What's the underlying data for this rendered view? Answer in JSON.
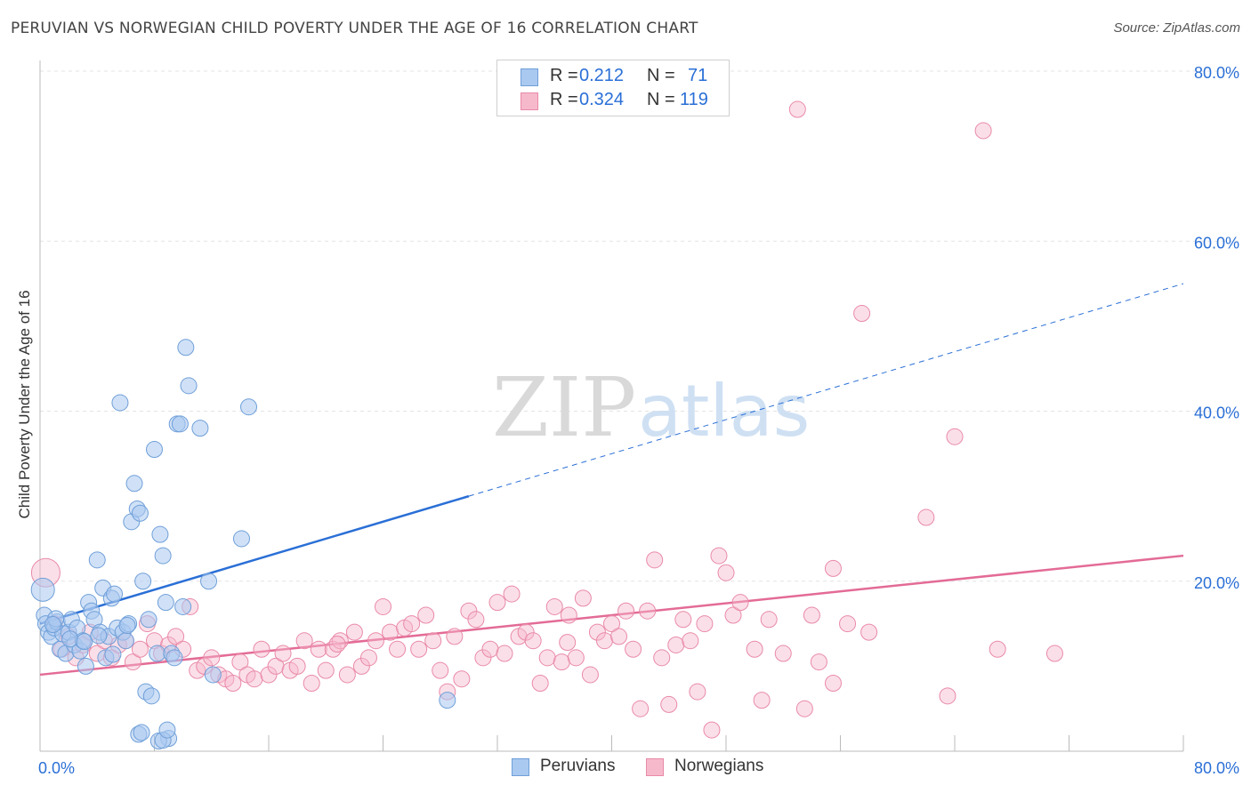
{
  "title": "PERUVIAN VS NORWEGIAN CHILD POVERTY UNDER THE AGE OF 16 CORRELATION CHART",
  "source": "Source: ZipAtlas.com",
  "watermark": {
    "zip": "ZIP",
    "atlas": "atlas"
  },
  "colors": {
    "peruvians_fill": "#aac9f0",
    "peruvians_stroke": "#6f9fd8",
    "peruvians_line": "#2a6fd6",
    "norwegians_fill": "#f6b9cc",
    "norwegians_stroke": "#e98aa8",
    "norwegians_line": "#e36b96",
    "accent_text": "#2a6fd6"
  },
  "legend_top": [
    {
      "r_label": "R =",
      "r_value": "0.212",
      "n_label": "N =",
      "n_value": "71"
    },
    {
      "r_label": "R =",
      "r_value": "0.324",
      "n_label": "N =",
      "n_value": "119"
    }
  ],
  "legend_bottom": {
    "peruvians": "Peruvians",
    "norwegians": "Norwegians"
  },
  "chart_data": {
    "type": "scatter",
    "xlabel": "",
    "ylabel": "Child Poverty Under the Age of 16",
    "xlim": [
      0,
      80
    ],
    "ylim": [
      0,
      80
    ],
    "x_tick_labels": [
      "0.0%",
      "80.0%"
    ],
    "y_tick_labels": [
      "20.0%",
      "40.0%",
      "60.0%",
      "80.0%"
    ],
    "y_ticks": [
      20,
      40,
      60,
      80
    ],
    "grid": true,
    "series": [
      {
        "name": "Peruvians",
        "R": 0.212,
        "N": 71,
        "trend": {
          "x0": 0,
          "y0": 15.0,
          "x1": 30,
          "y1": 30.0,
          "dashed_to_x": 80,
          "dashed_to_y": 55.0
        },
        "points": [
          [
            0.2,
            19.0
          ],
          [
            0.3,
            16.0
          ],
          [
            0.4,
            15.0
          ],
          [
            0.6,
            14.0
          ],
          [
            0.8,
            13.5
          ],
          [
            1.0,
            14.5
          ],
          [
            1.2,
            15.2
          ],
          [
            1.4,
            12.0
          ],
          [
            1.6,
            13.8
          ],
          [
            1.8,
            11.5
          ],
          [
            2.0,
            14.0
          ],
          [
            2.2,
            15.5
          ],
          [
            2.4,
            12.5
          ],
          [
            2.6,
            14.5
          ],
          [
            2.8,
            11.8
          ],
          [
            3.0,
            13.0
          ],
          [
            3.2,
            10.0
          ],
          [
            3.4,
            17.5
          ],
          [
            3.6,
            16.5
          ],
          [
            3.8,
            15.5
          ],
          [
            4.0,
            22.5
          ],
          [
            4.2,
            14.0
          ],
          [
            4.4,
            19.2
          ],
          [
            4.6,
            11.0
          ],
          [
            4.8,
            13.5
          ],
          [
            5.0,
            18.0
          ],
          [
            5.2,
            18.5
          ],
          [
            5.4,
            14.5
          ],
          [
            5.6,
            41.0
          ],
          [
            5.8,
            14.0
          ],
          [
            6.0,
            13.0
          ],
          [
            6.2,
            15.0
          ],
          [
            6.4,
            27.0
          ],
          [
            6.6,
            31.5
          ],
          [
            6.8,
            28.5
          ],
          [
            7.0,
            28.0
          ],
          [
            7.2,
            20.0
          ],
          [
            7.4,
            7.0
          ],
          [
            7.6,
            15.5
          ],
          [
            7.8,
            6.5
          ],
          [
            8.0,
            35.5
          ],
          [
            8.2,
            11.5
          ],
          [
            8.4,
            25.5
          ],
          [
            8.6,
            23.0
          ],
          [
            8.8,
            17.5
          ],
          [
            9.0,
            1.5
          ],
          [
            9.2,
            11.5
          ],
          [
            9.4,
            11.0
          ],
          [
            9.6,
            38.5
          ],
          [
            9.8,
            38.5
          ],
          [
            10.0,
            17.0
          ],
          [
            10.2,
            47.5
          ],
          [
            10.4,
            43.0
          ],
          [
            11.2,
            38.0
          ],
          [
            11.8,
            20.0
          ],
          [
            12.1,
            9.0
          ],
          [
            14.1,
            25.0
          ],
          [
            14.6,
            40.5
          ],
          [
            28.5,
            6.0
          ],
          [
            6.9,
            2.0
          ],
          [
            7.1,
            2.2
          ],
          [
            8.3,
            1.2
          ],
          [
            8.6,
            1.3
          ],
          [
            8.9,
            2.5
          ],
          [
            1.1,
            15.6
          ],
          [
            2.1,
            13.2
          ],
          [
            3.1,
            12.9
          ],
          [
            4.1,
            13.6
          ],
          [
            5.1,
            11.4
          ],
          [
            6.1,
            14.8
          ],
          [
            0.9,
            14.9
          ]
        ]
      },
      {
        "name": "Norwegians",
        "R": 0.324,
        "N": 119,
        "trend": {
          "x0": 0,
          "y0": 9.0,
          "x1": 80,
          "y1": 23.0
        },
        "points": [
          [
            0.4,
            21.0
          ],
          [
            1.0,
            15.0
          ],
          [
            1.5,
            12.0
          ],
          [
            2.0,
            13.5
          ],
          [
            2.5,
            11.0
          ],
          [
            3.0,
            12.5
          ],
          [
            3.5,
            14.0
          ],
          [
            4.0,
            11.5
          ],
          [
            4.5,
            13.0
          ],
          [
            5.0,
            11.0
          ],
          [
            5.5,
            12.5
          ],
          [
            6.0,
            13.0
          ],
          [
            6.5,
            10.5
          ],
          [
            7.0,
            12.0
          ],
          [
            7.5,
            15.0
          ],
          [
            8.0,
            13.0
          ],
          [
            8.5,
            11.5
          ],
          [
            9.0,
            12.5
          ],
          [
            9.5,
            13.5
          ],
          [
            10.0,
            12.0
          ],
          [
            10.5,
            17.0
          ],
          [
            11.0,
            9.5
          ],
          [
            11.5,
            10.0
          ],
          [
            12.0,
            11.0
          ],
          [
            12.5,
            9.0
          ],
          [
            13.0,
            8.5
          ],
          [
            13.5,
            8.0
          ],
          [
            14.0,
            10.5
          ],
          [
            14.5,
            9.0
          ],
          [
            15.0,
            8.5
          ],
          [
            15.5,
            12.0
          ],
          [
            16.0,
            9.0
          ],
          [
            16.5,
            10.0
          ],
          [
            17.0,
            11.5
          ],
          [
            17.5,
            9.5
          ],
          [
            18.0,
            10.0
          ],
          [
            18.5,
            13.0
          ],
          [
            19.0,
            8.0
          ],
          [
            19.5,
            12.0
          ],
          [
            20.0,
            9.5
          ],
          [
            20.5,
            12.0
          ],
          [
            21.0,
            13.0
          ],
          [
            21.5,
            9.0
          ],
          [
            22.0,
            14.0
          ],
          [
            22.5,
            10.0
          ],
          [
            23.0,
            11.0
          ],
          [
            23.5,
            13.0
          ],
          [
            24.0,
            17.0
          ],
          [
            24.5,
            14.0
          ],
          [
            25.0,
            12.0
          ],
          [
            25.5,
            14.5
          ],
          [
            26.0,
            15.0
          ],
          [
            26.5,
            12.0
          ],
          [
            27.0,
            16.0
          ],
          [
            27.5,
            13.0
          ],
          [
            28.0,
            9.5
          ],
          [
            28.5,
            7.0
          ],
          [
            29.0,
            13.5
          ],
          [
            29.5,
            8.5
          ],
          [
            30.0,
            16.5
          ],
          [
            30.5,
            15.5
          ],
          [
            31.0,
            11.0
          ],
          [
            31.5,
            12.0
          ],
          [
            32.0,
            17.5
          ],
          [
            32.5,
            11.5
          ],
          [
            33.0,
            18.5
          ],
          [
            33.5,
            13.5
          ],
          [
            34.0,
            14.0
          ],
          [
            34.5,
            13.0
          ],
          [
            35.0,
            8.0
          ],
          [
            35.5,
            11.0
          ],
          [
            36.0,
            17.0
          ],
          [
            36.5,
            10.5
          ],
          [
            37.0,
            16.0
          ],
          [
            37.5,
            11.0
          ],
          [
            38.0,
            18.0
          ],
          [
            38.5,
            9.0
          ],
          [
            39.0,
            14.0
          ],
          [
            39.5,
            13.0
          ],
          [
            40.0,
            15.0
          ],
          [
            40.5,
            13.5
          ],
          [
            41.0,
            16.5
          ],
          [
            41.5,
            12.0
          ],
          [
            42.0,
            5.0
          ],
          [
            42.5,
            16.5
          ],
          [
            43.0,
            22.5
          ],
          [
            43.5,
            11.0
          ],
          [
            44.0,
            5.5
          ],
          [
            44.5,
            12.5
          ],
          [
            45.0,
            15.5
          ],
          [
            45.5,
            13.0
          ],
          [
            46.0,
            7.0
          ],
          [
            46.5,
            15.0
          ],
          [
            47.0,
            2.5
          ],
          [
            47.5,
            23.0
          ],
          [
            48.0,
            21.0
          ],
          [
            48.5,
            16.0
          ],
          [
            49.0,
            17.5
          ],
          [
            50.0,
            12.0
          ],
          [
            50.5,
            6.0
          ],
          [
            51.0,
            15.5
          ],
          [
            52.0,
            11.5
          ],
          [
            53.0,
            75.5
          ],
          [
            53.5,
            5.0
          ],
          [
            54.0,
            16.0
          ],
          [
            54.5,
            10.5
          ],
          [
            55.5,
            21.5
          ],
          [
            55.5,
            8.0
          ],
          [
            56.5,
            15.0
          ],
          [
            57.5,
            51.5
          ],
          [
            58.0,
            14.0
          ],
          [
            62.0,
            27.5
          ],
          [
            63.5,
            6.5
          ],
          [
            64.0,
            37.0
          ],
          [
            66.0,
            73.0
          ],
          [
            67.0,
            12.0
          ],
          [
            71.0,
            11.5
          ],
          [
            20.8,
            12.6
          ],
          [
            36.9,
            12.8
          ]
        ]
      }
    ]
  }
}
